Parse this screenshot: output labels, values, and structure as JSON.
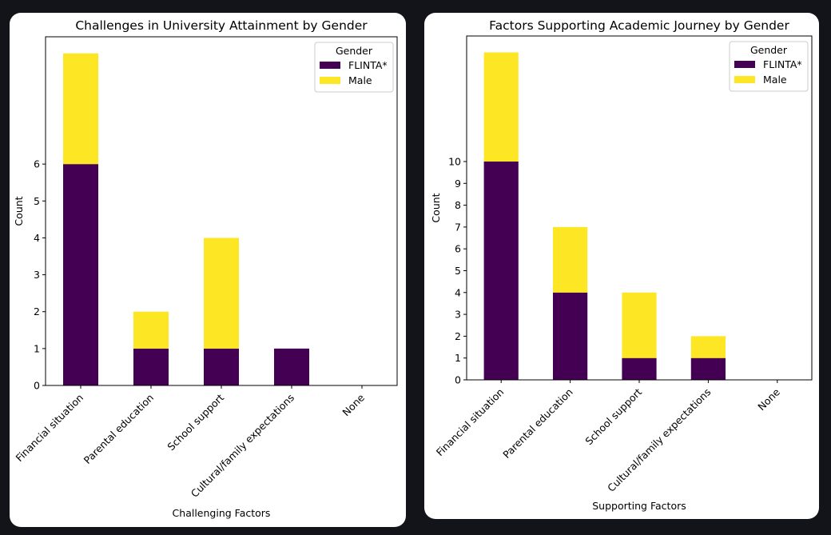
{
  "colors": {
    "FLINTA*": "#440154",
    "Male": "#fde725"
  },
  "chart_data": [
    {
      "type": "bar",
      "stacked": true,
      "title": "Challenges in University Attainment by Gender",
      "xlabel": "Challenging Factors",
      "ylabel": "Count",
      "categories": [
        "Financial situation",
        "Parental education",
        "School support",
        "Cultural/family expectations",
        "None"
      ],
      "series": [
        {
          "name": "FLINTA*",
          "values": [
            6,
            1,
            1,
            1,
            0
          ]
        },
        {
          "name": "Male",
          "values": [
            3,
            1,
            3,
            0,
            0
          ]
        }
      ],
      "yticks": [
        0,
        1,
        2,
        3,
        4,
        5,
        6
      ],
      "ylim": [
        0,
        9.45
      ],
      "legend": {
        "title": "Gender",
        "placement": "top-right"
      },
      "grid": false
    },
    {
      "type": "bar",
      "stacked": true,
      "title": "Factors Supporting Academic Journey by Gender",
      "xlabel": "Supporting Factors",
      "ylabel": "Count",
      "categories": [
        "Financial situation",
        "Parental education",
        "School support",
        "Cultural/family expectations",
        "None"
      ],
      "series": [
        {
          "name": "FLINTA*",
          "values": [
            10,
            4,
            1,
            1,
            0
          ]
        },
        {
          "name": "Male",
          "values": [
            5,
            3,
            3,
            1,
            0
          ]
        }
      ],
      "yticks": [
        0,
        1,
        2,
        3,
        4,
        5,
        6,
        7,
        8,
        9,
        10
      ],
      "ylim": [
        0,
        15.75
      ],
      "legend": {
        "title": "Gender",
        "placement": "top-right"
      },
      "grid": false
    }
  ]
}
